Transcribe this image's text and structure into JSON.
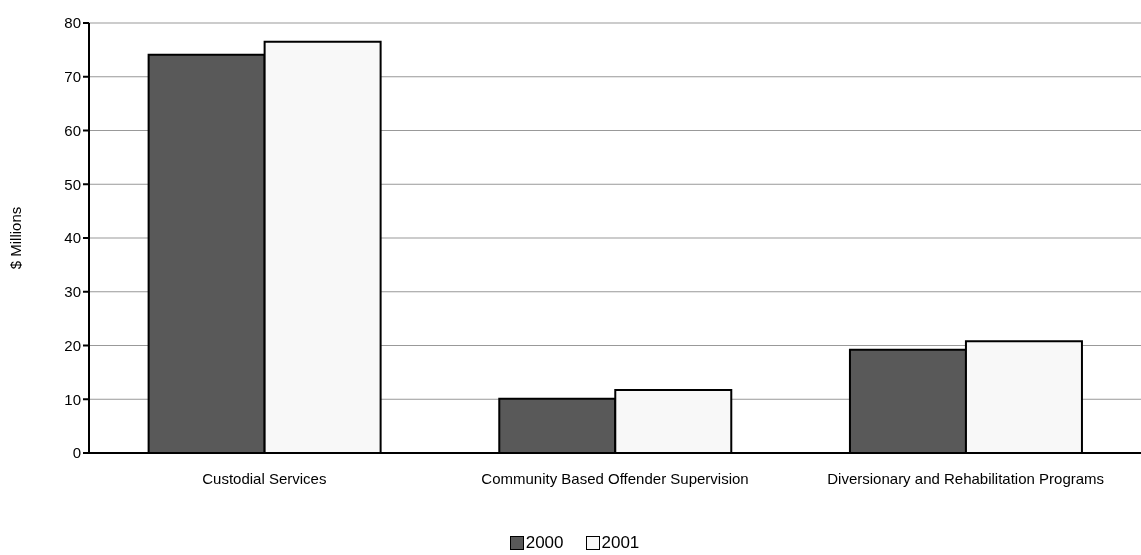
{
  "chart_data": {
    "type": "bar",
    "ylabel": "$ Millions",
    "categories": [
      "Custodial Services",
      "Community Based Offender Supervision",
      "Diversionary and Rehabilitation Programs"
    ],
    "series": [
      {
        "name": "2000",
        "color": "#595959",
        "values": [
          74.1,
          10.1,
          19.2
        ]
      },
      {
        "name": "2001",
        "color": "#f8f8f8",
        "values": [
          76.5,
          11.7,
          20.8
        ]
      }
    ],
    "ylim": [
      0,
      80
    ],
    "yticks": [
      0,
      10,
      20,
      30,
      40,
      50,
      60,
      70,
      80
    ],
    "grid": "y",
    "legend": "bottom"
  }
}
